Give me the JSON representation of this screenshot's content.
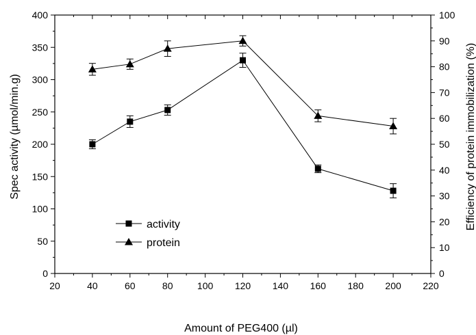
{
  "chart_data": {
    "type": "line",
    "x": [
      40,
      60,
      80,
      120,
      160,
      200
    ],
    "xlabel": "Amount of PEG400 (µl)",
    "ylabel": "Spec activity (µmol/min.g)",
    "y2label": "Efficiency of protein immobilization (%)",
    "xlim": [
      20,
      220
    ],
    "ylim": [
      0,
      400
    ],
    "y2lim": [
      0,
      100
    ],
    "x_ticks": [
      20,
      40,
      60,
      80,
      100,
      120,
      140,
      160,
      180,
      200,
      220
    ],
    "y_ticks": [
      0,
      50,
      100,
      150,
      200,
      250,
      300,
      350,
      400
    ],
    "y2_ticks": [
      0,
      10,
      20,
      30,
      40,
      50,
      60,
      70,
      80,
      90,
      100
    ],
    "grid": false,
    "legend_position": "lower-left",
    "series": [
      {
        "name": "activity",
        "marker": "square",
        "axis": "left",
        "values": [
          200,
          235,
          253,
          330,
          162,
          128
        ],
        "errors": [
          7,
          9,
          8,
          11,
          6,
          11
        ]
      },
      {
        "name": "protein",
        "marker": "triangle",
        "axis": "right",
        "values": [
          79,
          81,
          87,
          90,
          61,
          57
        ],
        "errors": [
          2.3,
          2.0,
          3.0,
          2.0,
          2.3,
          3.0
        ]
      }
    ]
  }
}
